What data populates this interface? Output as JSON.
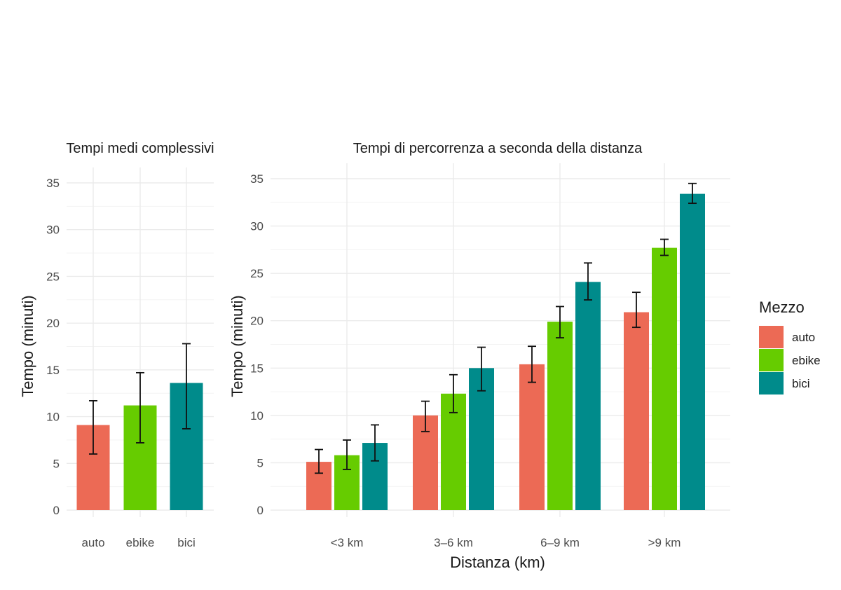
{
  "chart_data": [
    {
      "type": "bar",
      "title": "Tempi medi complessivi",
      "xlabel": "",
      "ylabel": "Tempo (minuti)",
      "ylim": [
        0,
        35
      ],
      "yticks": [
        "0",
        "5",
        "10",
        "15",
        "20",
        "25",
        "30",
        "35"
      ],
      "categories": [
        "auto",
        "ebike",
        "bici"
      ],
      "values": [
        9.1,
        11.2,
        13.6
      ],
      "error_low": [
        6.0,
        7.2,
        8.7
      ],
      "error_high": [
        11.7,
        14.7,
        17.8
      ],
      "grid": true
    },
    {
      "type": "bar",
      "title": "Tempi di percorrenza a seconda della distanza",
      "xlabel": "Distanza (km)",
      "ylabel": "Tempo (minuti)",
      "ylim": [
        0,
        35
      ],
      "yticks": [
        "0",
        "5",
        "10",
        "15",
        "20",
        "25",
        "30",
        "35"
      ],
      "categories": [
        "<3 km",
        "3–6 km",
        "6–9 km",
        ">9 km"
      ],
      "series": [
        {
          "name": "auto",
          "values": [
            5.1,
            10.0,
            15.4,
            20.9
          ],
          "error_low": [
            3.9,
            8.3,
            13.5,
            19.3
          ],
          "error_high": [
            6.4,
            11.5,
            17.3,
            23.0
          ]
        },
        {
          "name": "ebike",
          "values": [
            5.8,
            12.3,
            19.9,
            27.7
          ],
          "error_low": [
            4.3,
            10.3,
            18.2,
            26.9
          ],
          "error_high": [
            7.4,
            14.3,
            21.5,
            28.6
          ]
        },
        {
          "name": "bici",
          "values": [
            7.1,
            15.0,
            24.1,
            33.4
          ],
          "error_low": [
            5.2,
            12.6,
            22.2,
            32.4
          ],
          "error_high": [
            9.0,
            17.2,
            26.1,
            34.5
          ]
        }
      ],
      "grid": true
    }
  ],
  "legend": {
    "title": "Mezzo",
    "position": "right",
    "items": [
      "auto",
      "ebike",
      "bici"
    ]
  },
  "colors": {
    "auto": "#ec6a55",
    "ebike": "#66cc00",
    "bici": "#008b8b"
  }
}
